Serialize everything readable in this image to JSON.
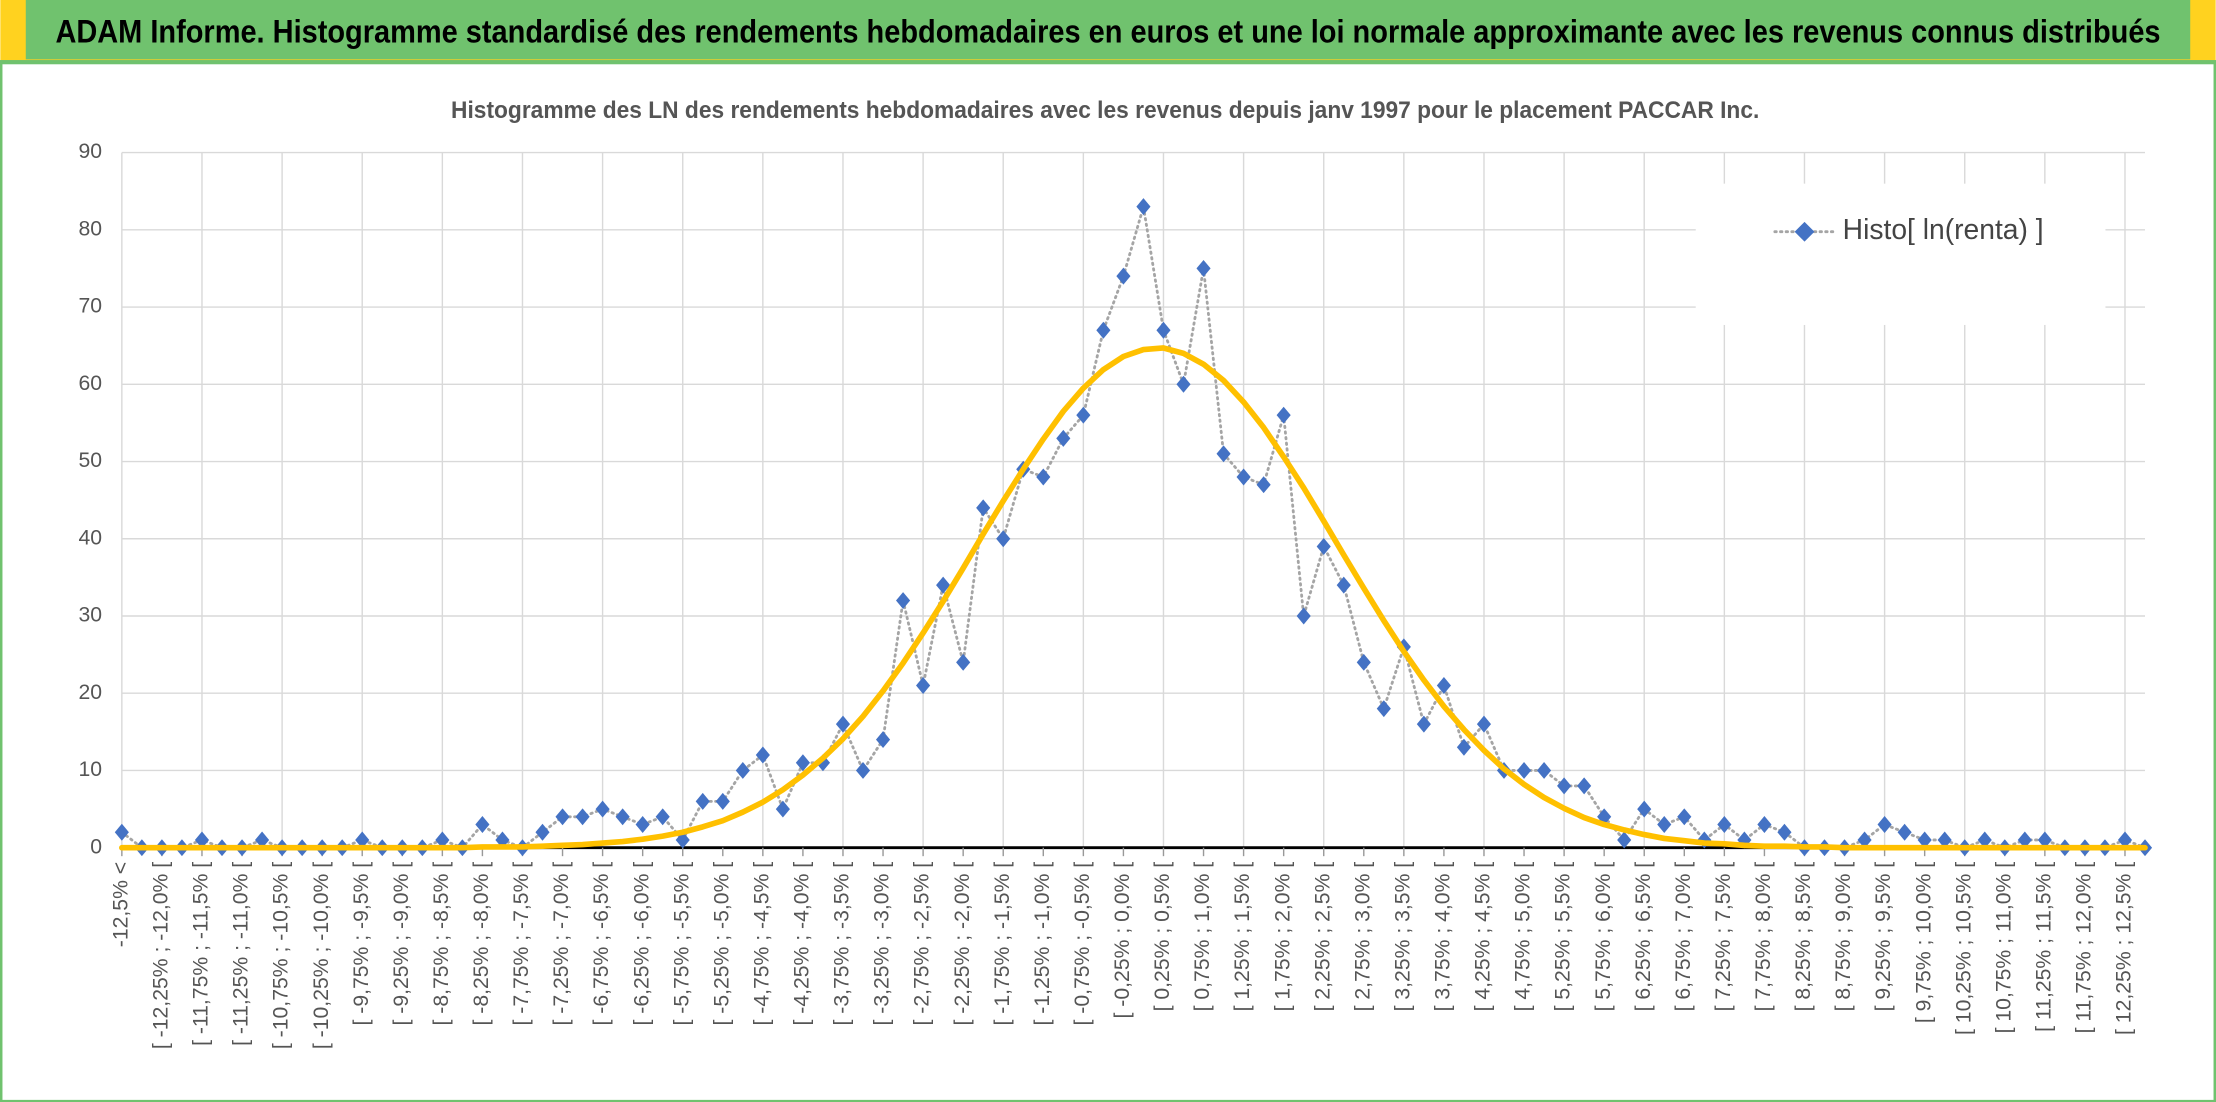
{
  "chart_data": {
    "type": "line",
    "title": "ADAM Informe. Histogramme standardisé des rendements hebdomadaires en euros et une loi normale approximante avec les revenus connus distribués",
    "subtitle": "Histogramme des LN des rendements hebdomadaires avec les revenus depuis janv 1997 pour le placement PACCAR Inc.",
    "categories": [
      "-12,5% <",
      null,
      "[ -12,25% ; -12,0% [",
      null,
      "[ -11,75% ; -11,5% [",
      null,
      "[ -11,25% ; -11,0% [",
      null,
      "[ -10,75% ; -10,5% [",
      null,
      "[ -10,25% ; -10,0% [",
      null,
      "[ -9,75% ; -9,5% [",
      null,
      "[ -9,25% ; -9,0% [",
      null,
      "[ -8,75% ; -8,5% [",
      null,
      "[ -8,25% ; -8,0% [",
      null,
      "[ -7,75% ; -7,5% [",
      null,
      "[ -7,25% ; -7,0% [",
      null,
      "[ -6,75% ; -6,5% [",
      null,
      "[ -6,25% ; -6,0% [",
      null,
      "[ -5,75% ; -5,5% [",
      null,
      "[ -5,25% ; -5,0% [",
      null,
      "[ -4,75% ; -4,5% [",
      null,
      "[ -4,25% ; -4,0% [",
      null,
      "[ -3,75% ; -3,5% [",
      null,
      "[ -3,25% ; -3,0% [",
      null,
      "[ -2,75% ; -2,5% [",
      null,
      "[ -2,25% ; -2,0% [",
      null,
      "[ -1,75% ; -1,5% [",
      null,
      "[ -1,25% ; -1,0% [",
      null,
      "[ -0,75% ; -0,5% [",
      null,
      "[ -0,25% ; 0,0% [",
      null,
      "[ 0,25% ; 0,5% [",
      null,
      "[ 0,75% ; 1,0% [",
      null,
      "[ 1,25% ; 1,5% [",
      null,
      "[ 1,75% ; 2,0% [",
      null,
      "[ 2,25% ; 2,5% [",
      null,
      "[ 2,75% ; 3,0% [",
      null,
      "[ 3,25% ; 3,5% [",
      null,
      "[ 3,75% ; 4,0% [",
      null,
      "[ 4,25% ; 4,5% [",
      null,
      "[ 4,75% ; 5,0% [",
      null,
      "[ 5,25% ; 5,5% [",
      null,
      "[ 5,75% ; 6,0% [",
      null,
      "[ 6,25% ; 6,5% [",
      null,
      "[ 6,75% ; 7,0% [",
      null,
      "[ 7,25% ; 7,5% [",
      null,
      "[ 7,75% ; 8,0% [",
      null,
      "[ 8,25% ; 8,5% [",
      null,
      "[ 8,75% ; 9,0% [",
      null,
      "[ 9,25% ; 9,5% [",
      null,
      "[ 9,75% ; 10,0% [",
      null,
      "[ 10,25% ; 10,5% [",
      null,
      "[ 10,75% ; 11,0% [",
      null,
      "[ 11,25% ; 11,5% [",
      null,
      "[ 11,75% ; 12,0% [",
      null,
      "[ 12,25% ; 12,5% [",
      null
    ],
    "series": [
      {
        "name": "Histo[ ln(renta) ]",
        "color": "#4472c4",
        "line_color": "#a5a5a5",
        "line_style": "dotted",
        "marker": "diamond",
        "values": [
          2,
          0,
          0,
          0,
          1,
          0,
          0,
          1,
          0,
          0,
          0,
          0,
          1,
          0,
          0,
          0,
          1,
          0,
          3,
          1,
          0,
          2,
          4,
          4,
          5,
          4,
          3,
          4,
          1,
          6,
          6,
          10,
          12,
          5,
          11,
          11,
          16,
          10,
          14,
          32,
          21,
          34,
          24,
          44,
          40,
          49,
          48,
          53,
          56,
          67,
          74,
          83,
          67,
          60,
          75,
          51,
          48,
          47,
          56,
          30,
          39,
          34,
          24,
          18,
          26,
          16,
          21,
          13,
          16,
          10,
          10,
          10,
          8,
          8,
          4,
          1,
          5,
          3,
          4,
          1,
          3,
          1,
          3,
          2,
          0,
          0,
          0,
          1,
          3,
          2,
          1,
          1,
          0,
          1,
          0,
          1,
          1,
          0,
          0,
          0,
          1,
          0
        ]
      },
      {
        "color": "#ffc000",
        "line_style": "solid",
        "marker": "none",
        "values": [
          0,
          0,
          0,
          0,
          0,
          0,
          0,
          0,
          0,
          0,
          0,
          0,
          0,
          0,
          0,
          0,
          0,
          0,
          0.1,
          0.1,
          0.1,
          0.2,
          0.3,
          0.4,
          0.6,
          0.8,
          1.1,
          1.5,
          2.0,
          2.7,
          3.5,
          4.6,
          5.9,
          7.5,
          9.4,
          11.6,
          14.1,
          17.0,
          20.3,
          23.9,
          27.8,
          31.9,
          36.2,
          40.6,
          44.9,
          49.0,
          52.9,
          56.5,
          59.5,
          61.9,
          63.6,
          64.5,
          64.7,
          64.0,
          62.6,
          60.5,
          57.7,
          54.4,
          50.6,
          46.6,
          42.3,
          37.9,
          33.6,
          29.4,
          25.4,
          21.7,
          18.3,
          15.3,
          12.6,
          10.2,
          8.2,
          6.5,
          5.1,
          3.9,
          3.0,
          2.3,
          1.7,
          1.2,
          0.9,
          0.6,
          0.5,
          0.3,
          0.2,
          0.2,
          0.1,
          0.1,
          0,
          0,
          0,
          0,
          0,
          0,
          0,
          0,
          0,
          0,
          0,
          0,
          0,
          0,
          0,
          0
        ]
      }
    ],
    "ylim": [
      0,
      90
    ],
    "yticks": [
      0,
      10,
      20,
      30,
      40,
      50,
      60,
      70,
      80,
      90
    ],
    "grid": true,
    "legend": "upper right"
  }
}
